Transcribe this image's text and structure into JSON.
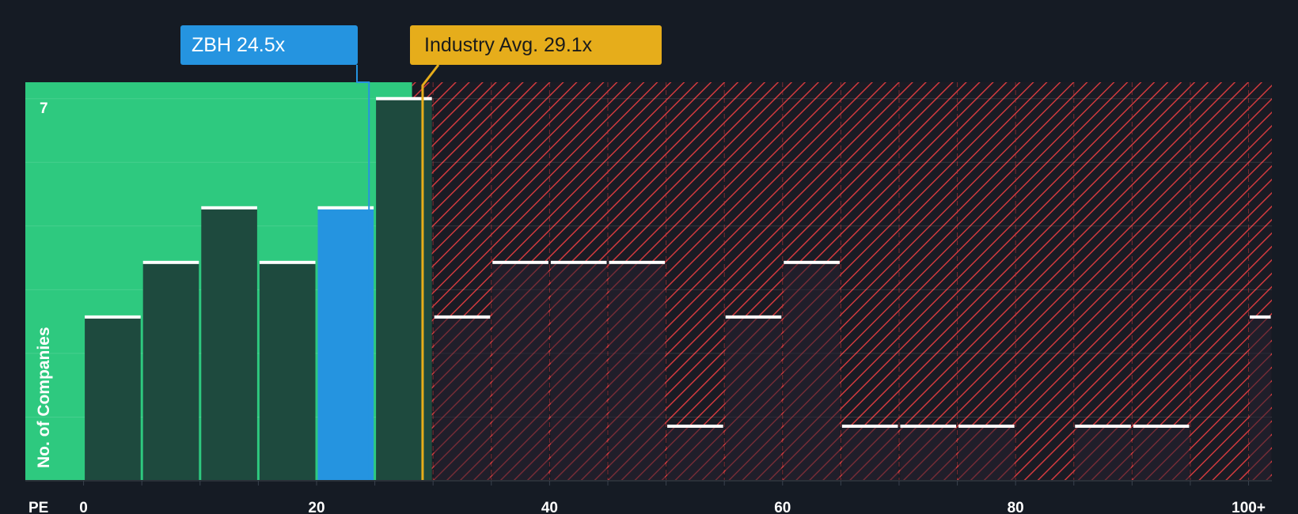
{
  "chart_data": {
    "type": "bar",
    "title": "",
    "xlabel": "PE",
    "ylabel": "No. of Companies",
    "xlim": [
      -5,
      102
    ],
    "ylim": [
      0,
      7.3
    ],
    "x_ticks": [
      {
        "value": 0,
        "label": "0"
      },
      {
        "value": 20,
        "label": "20"
      },
      {
        "value": 40,
        "label": "40"
      },
      {
        "value": 60,
        "label": "60"
      },
      {
        "value": 80,
        "label": "80"
      },
      {
        "value": 100,
        "label": "100+"
      }
    ],
    "y_tick_label": "7",
    "y_tick_value": 7,
    "bins": [
      {
        "start": 0,
        "end": 5,
        "count": 3
      },
      {
        "start": 5,
        "end": 10,
        "count": 4
      },
      {
        "start": 10,
        "end": 15,
        "count": 5
      },
      {
        "start": 15,
        "end": 20,
        "count": 4
      },
      {
        "start": 20,
        "end": 25,
        "count": 5,
        "highlight": true
      },
      {
        "start": 25,
        "end": 30,
        "count": 7
      },
      {
        "start": 30,
        "end": 35,
        "count": 3
      },
      {
        "start": 35,
        "end": 40,
        "count": 4
      },
      {
        "start": 40,
        "end": 45,
        "count": 4
      },
      {
        "start": 45,
        "end": 50,
        "count": 4
      },
      {
        "start": 50,
        "end": 55,
        "count": 1
      },
      {
        "start": 55,
        "end": 60,
        "count": 3
      },
      {
        "start": 60,
        "end": 65,
        "count": 4
      },
      {
        "start": 65,
        "end": 70,
        "count": 1
      },
      {
        "start": 70,
        "end": 75,
        "count": 1
      },
      {
        "start": 75,
        "end": 80,
        "count": 1
      },
      {
        "start": 80,
        "end": 85,
        "count": 0
      },
      {
        "start": 85,
        "end": 90,
        "count": 1
      },
      {
        "start": 90,
        "end": 95,
        "count": 1
      },
      {
        "start": 95,
        "end": 100,
        "count": 0
      },
      {
        "start": 100,
        "end": 102,
        "count": 3
      }
    ],
    "company": {
      "ticker": "ZBH",
      "pe": 24.5,
      "label": "ZBH 24.5x"
    },
    "industry_avg": {
      "pe": 29.1,
      "label": "Industry Avg. 29.1x"
    },
    "fair_zone_end": 28.2,
    "colors": {
      "background": "#151b24",
      "fair_zone": "#2ec97f",
      "bar": "#1e4a3e",
      "bar_highlight": "#2594e0",
      "overvalued_hatch": "#d03a3e",
      "company_marker": "#2594e0",
      "industry_marker": "#e6ad1b",
      "bar_cap": "#ffffff"
    }
  }
}
